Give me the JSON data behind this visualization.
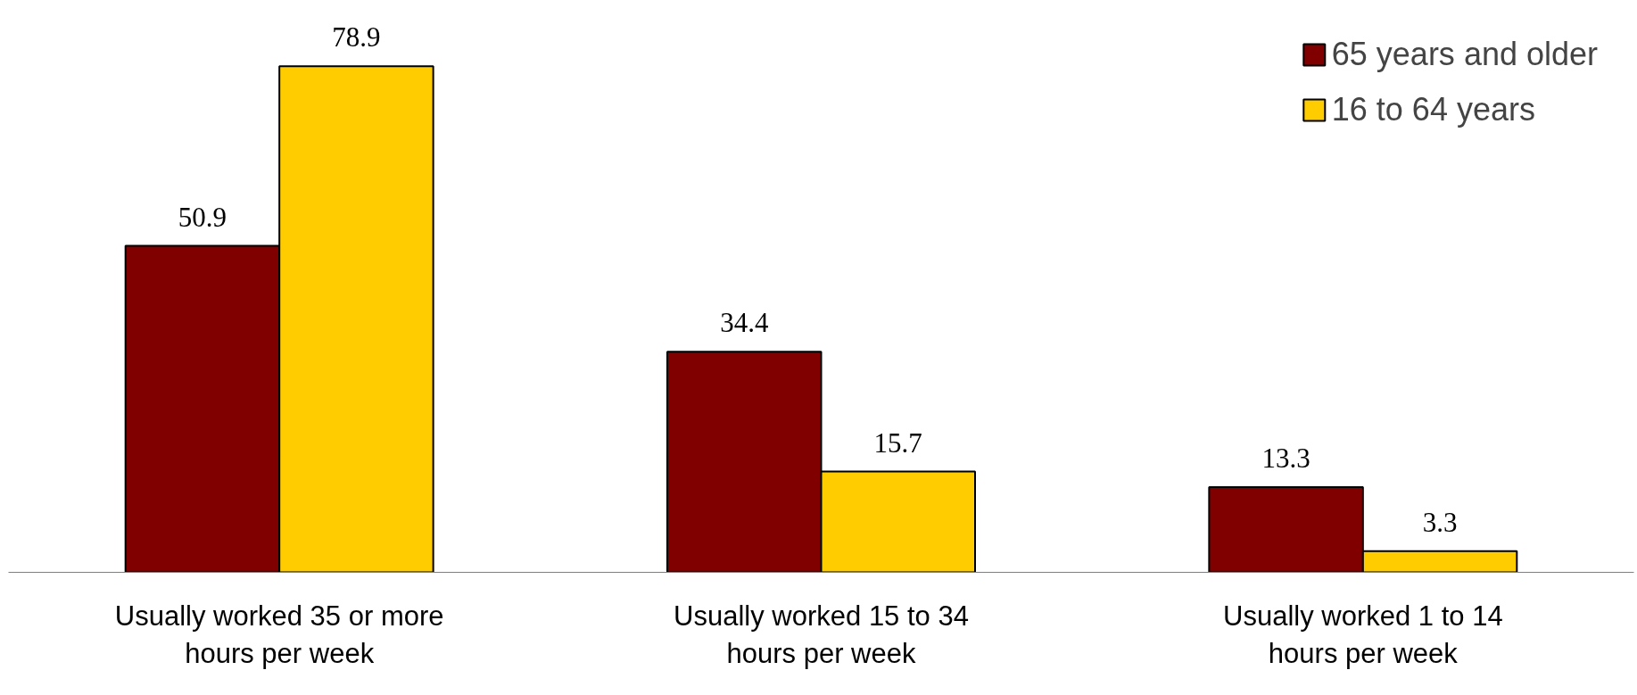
{
  "chart_data": {
    "type": "bar",
    "categories": [
      "Usually worked 35 or more hours per week",
      "Usually worked 15 to 34 hours per week",
      "Usually worked 1 to 14 hours per week"
    ],
    "series": [
      {
        "name": "65 years and older",
        "color": "#800000",
        "values": [
          50.9,
          34.4,
          13.3
        ]
      },
      {
        "name": "16 to 64 years",
        "color": "#ffcc00",
        "values": [
          78.9,
          15.7,
          3.3
        ]
      }
    ],
    "data_labels": true,
    "legend": "top right",
    "grid": false
  }
}
